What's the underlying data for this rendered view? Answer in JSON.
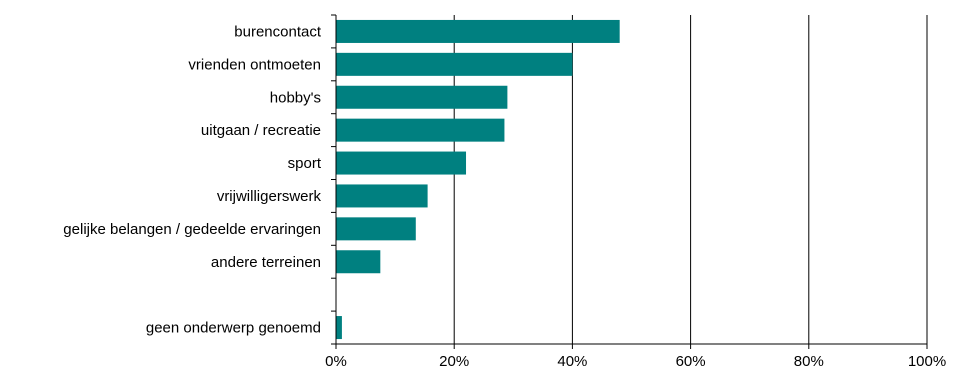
{
  "chart_data": {
    "type": "bar",
    "orientation": "horizontal",
    "categories": [
      "burencontact",
      "vrienden ontmoeten",
      "hobby's",
      "uitgaan / recreatie",
      "sport",
      "vrijwilligerswerk",
      "gelijke belangen / gedeelde ervaringen",
      "andere terreinen",
      "",
      "geen onderwerp genoemd"
    ],
    "values": [
      48,
      40,
      29,
      28.5,
      22,
      15.5,
      13.5,
      7.5,
      null,
      1
    ],
    "xlim": [
      0,
      100
    ],
    "xticks": [
      0,
      20,
      40,
      60,
      80,
      100
    ],
    "tick_labels": [
      "0%",
      "20%",
      "40%",
      "60%",
      "80%",
      "100%"
    ],
    "title": "",
    "xlabel": "",
    "ylabel": "",
    "grid": "vertical",
    "legend": "none",
    "bar_color": "#008080",
    "grid_color": "#000000"
  }
}
